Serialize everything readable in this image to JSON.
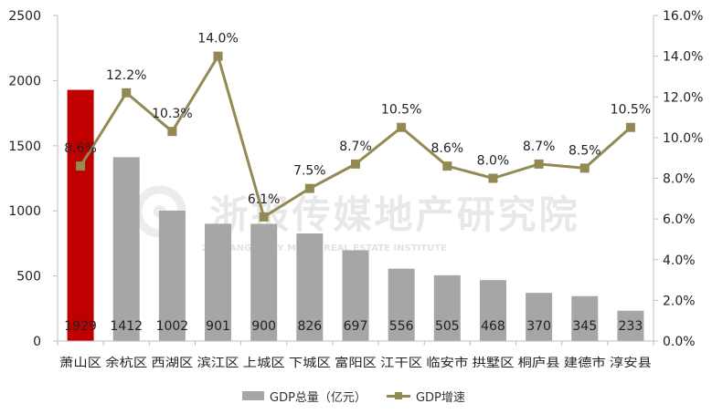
{
  "legend": {
    "bar_label": "GDP总量（亿元）",
    "line_label": "GDP增速"
  },
  "colors": {
    "highlight_bar": "#c00000",
    "bar": "#a6a6a6",
    "line": "#938953",
    "axis": "#bfbfbf"
  },
  "watermark": {
    "cn": "浙报传媒地产研究院",
    "en": "ZHEJIANG DAILY MEDIA REAL ESTATE INSTITUTE"
  },
  "chart_data": {
    "type": "bar",
    "categories": [
      "萧山区",
      "余杭区",
      "西湖区",
      "滨江区",
      "上城区",
      "下城区",
      "富阳区",
      "江干区",
      "临安市",
      "拱墅区",
      "桐庐县",
      "建德市",
      "淳安县"
    ],
    "series": [
      {
        "name": "GDP总量（亿元）",
        "type": "bar",
        "axis": "left",
        "values": [
          1929,
          1412,
          1002,
          901,
          900,
          826,
          697,
          556,
          505,
          468,
          370,
          345,
          233
        ],
        "labels": [
          "1929",
          "1412",
          "1002",
          "901",
          "900",
          "826",
          "697",
          "556",
          "505",
          "468",
          "370",
          "345",
          "233"
        ]
      },
      {
        "name": "GDP增速",
        "type": "line",
        "axis": "right",
        "values": [
          8.6,
          12.2,
          10.3,
          14.0,
          6.1,
          7.5,
          8.7,
          10.5,
          8.6,
          8.0,
          8.7,
          8.5,
          10.5
        ],
        "labels": [
          "8.6%",
          "12.2%",
          "10.3%",
          "14.0%",
          "6.1%",
          "7.5%",
          "8.7%",
          "10.5%",
          "8.6%",
          "8.0%",
          "8.7%",
          "8.5%",
          "10.5%"
        ]
      }
    ],
    "highlight_index": 0,
    "y_left": {
      "ylim": [
        0,
        2500
      ],
      "ticks": [
        0,
        500,
        1000,
        1500,
        2000,
        2500
      ],
      "tick_labels": [
        "0",
        "500",
        "1000",
        "1500",
        "2000",
        "2500"
      ]
    },
    "y_right": {
      "ylim": [
        0,
        16
      ],
      "ticks": [
        0,
        2,
        4,
        6,
        8,
        10,
        12,
        14,
        16
      ],
      "tick_labels": [
        "0.0%",
        "2.0%",
        "4.0%",
        "6.0%",
        "8.0%",
        "10.0%",
        "12.0%",
        "14.0%",
        "16.0%"
      ]
    },
    "grid": false,
    "legend_position": "bottom"
  }
}
